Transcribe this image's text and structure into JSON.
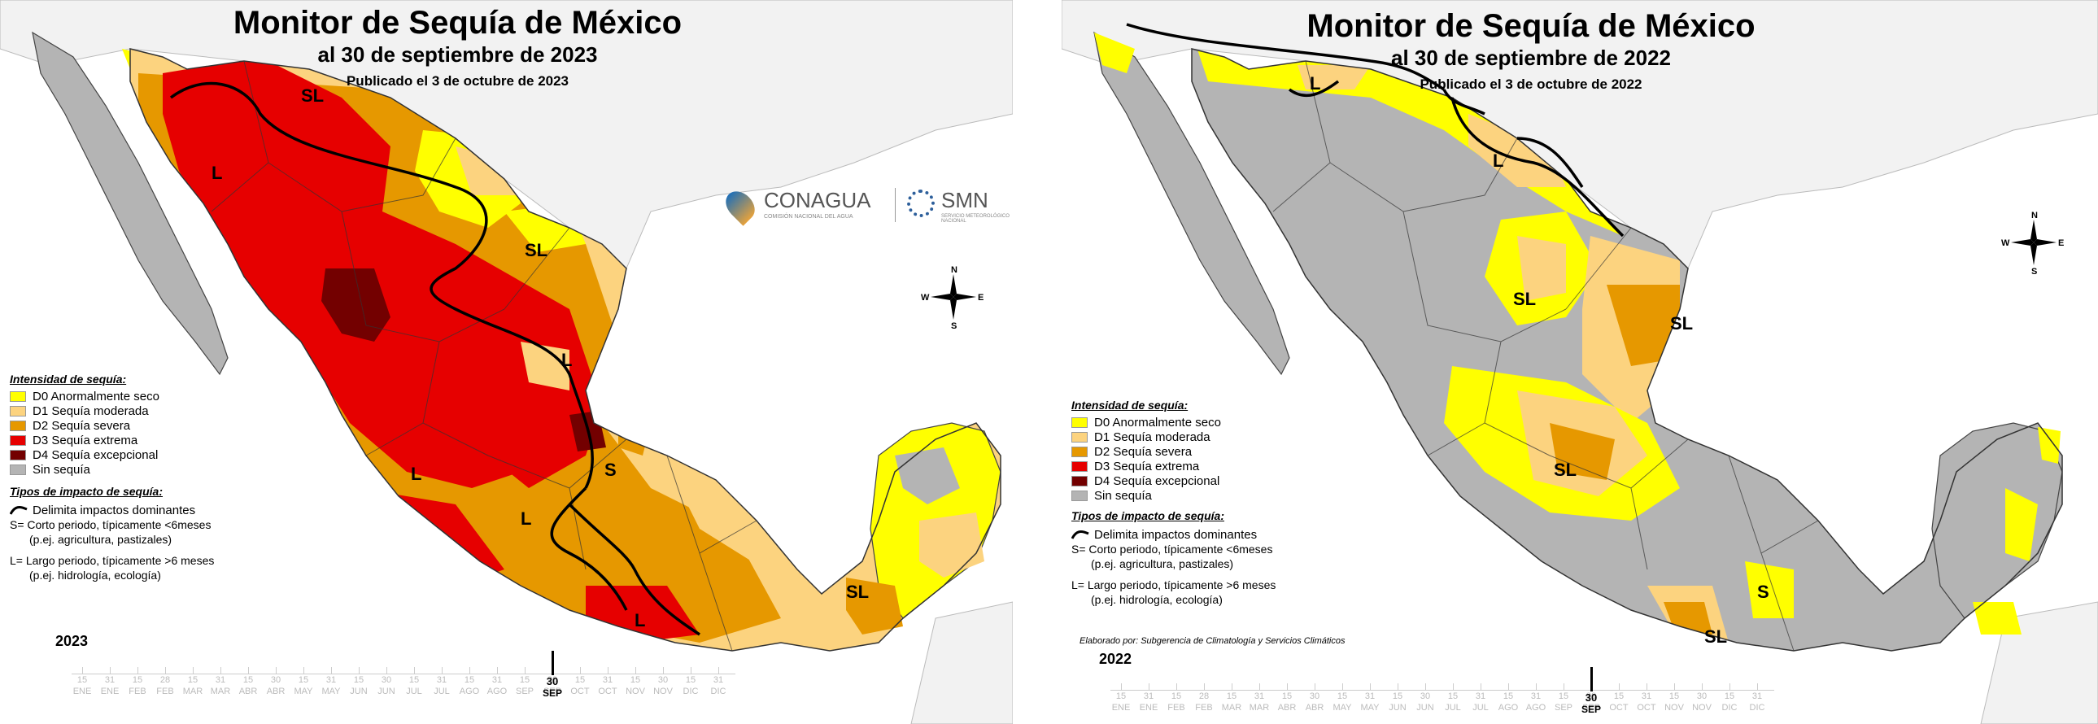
{
  "colors": {
    "D0": "#ffff00",
    "D1": "#fcd37f",
    "D2": "#e69800",
    "D3": "#e60000",
    "D4": "#730000",
    "none": "#b4b4b4",
    "ocean": "#ffffff",
    "land_outside": "#f4f4f4"
  },
  "legend": {
    "intensity_header": "Intensidad de sequía:",
    "categories": [
      {
        "code": "D0",
        "label": "D0 Anormalmente seco"
      },
      {
        "code": "D1",
        "label": "D1 Sequía moderada"
      },
      {
        "code": "D2",
        "label": "D2 Sequía severa"
      },
      {
        "code": "D3",
        "label": "D3 Sequía extrema"
      },
      {
        "code": "D4",
        "label": "D4 Sequía excepcional"
      },
      {
        "code": "none",
        "label": "Sin sequía"
      }
    ],
    "impact_header": "Tipos de impacto de sequía:",
    "impact_line": "Delimita impactos dominantes",
    "s_line1": "S= Corto periodo, típicamente <6meses",
    "s_line2": "(p.ej. agricultura, pastizales)",
    "l_line1": "L= Largo periodo, típicamente >6 meses",
    "l_line2": "(p.ej. hidrología, ecología)"
  },
  "compass": {
    "n": "N",
    "s": "S",
    "e": "E",
    "w": "W"
  },
  "timeline": {
    "days": [
      "15",
      "31",
      "15",
      "28",
      "15",
      "31",
      "15",
      "30",
      "15",
      "31",
      "15",
      "30",
      "15",
      "31",
      "15",
      "31",
      "15",
      "30",
      "15",
      "31",
      "15",
      "30",
      "15",
      "31"
    ],
    "months": [
      "ENE",
      "ENE",
      "FEB",
      "FEB",
      "MAR",
      "MAR",
      "ABR",
      "ABR",
      "MAY",
      "MAY",
      "JUN",
      "JUN",
      "JUL",
      "JUL",
      "AGO",
      "AGO",
      "SEP",
      "SEP",
      "OCT",
      "OCT",
      "NOV",
      "NOV",
      "DIC",
      "DIC"
    ],
    "current_day": "30",
    "current_month": "SEP"
  },
  "panels": [
    {
      "title": "Monitor de Sequía de México",
      "subtitle": "al 30 de septiembre de 2023",
      "published": "Publicado el 3 de octubre de 2023",
      "year": "2023",
      "labels": [
        "SL",
        "L",
        "SL",
        "L",
        "L",
        "L",
        "S",
        "L",
        "SL"
      ],
      "logos": {
        "conagua": "CONAGUA",
        "conagua_sub": "COMISIÓN NACIONAL DEL AGUA",
        "smn": "SMN",
        "smn_sub": "SERVICIO METEOROLÓGICO NACIONAL"
      }
    },
    {
      "title": "Monitor de Sequía de México",
      "subtitle": "al 30 de septiembre de 2022",
      "published": "Publicado el 3 de octubre de 2022",
      "year": "2022",
      "labels": [
        "L",
        "L",
        "SL",
        "SL",
        "SL",
        "S",
        "SL"
      ],
      "credit": "Elaborado por: Subgerencia de Climatología y Servicios Climáticos"
    }
  ]
}
